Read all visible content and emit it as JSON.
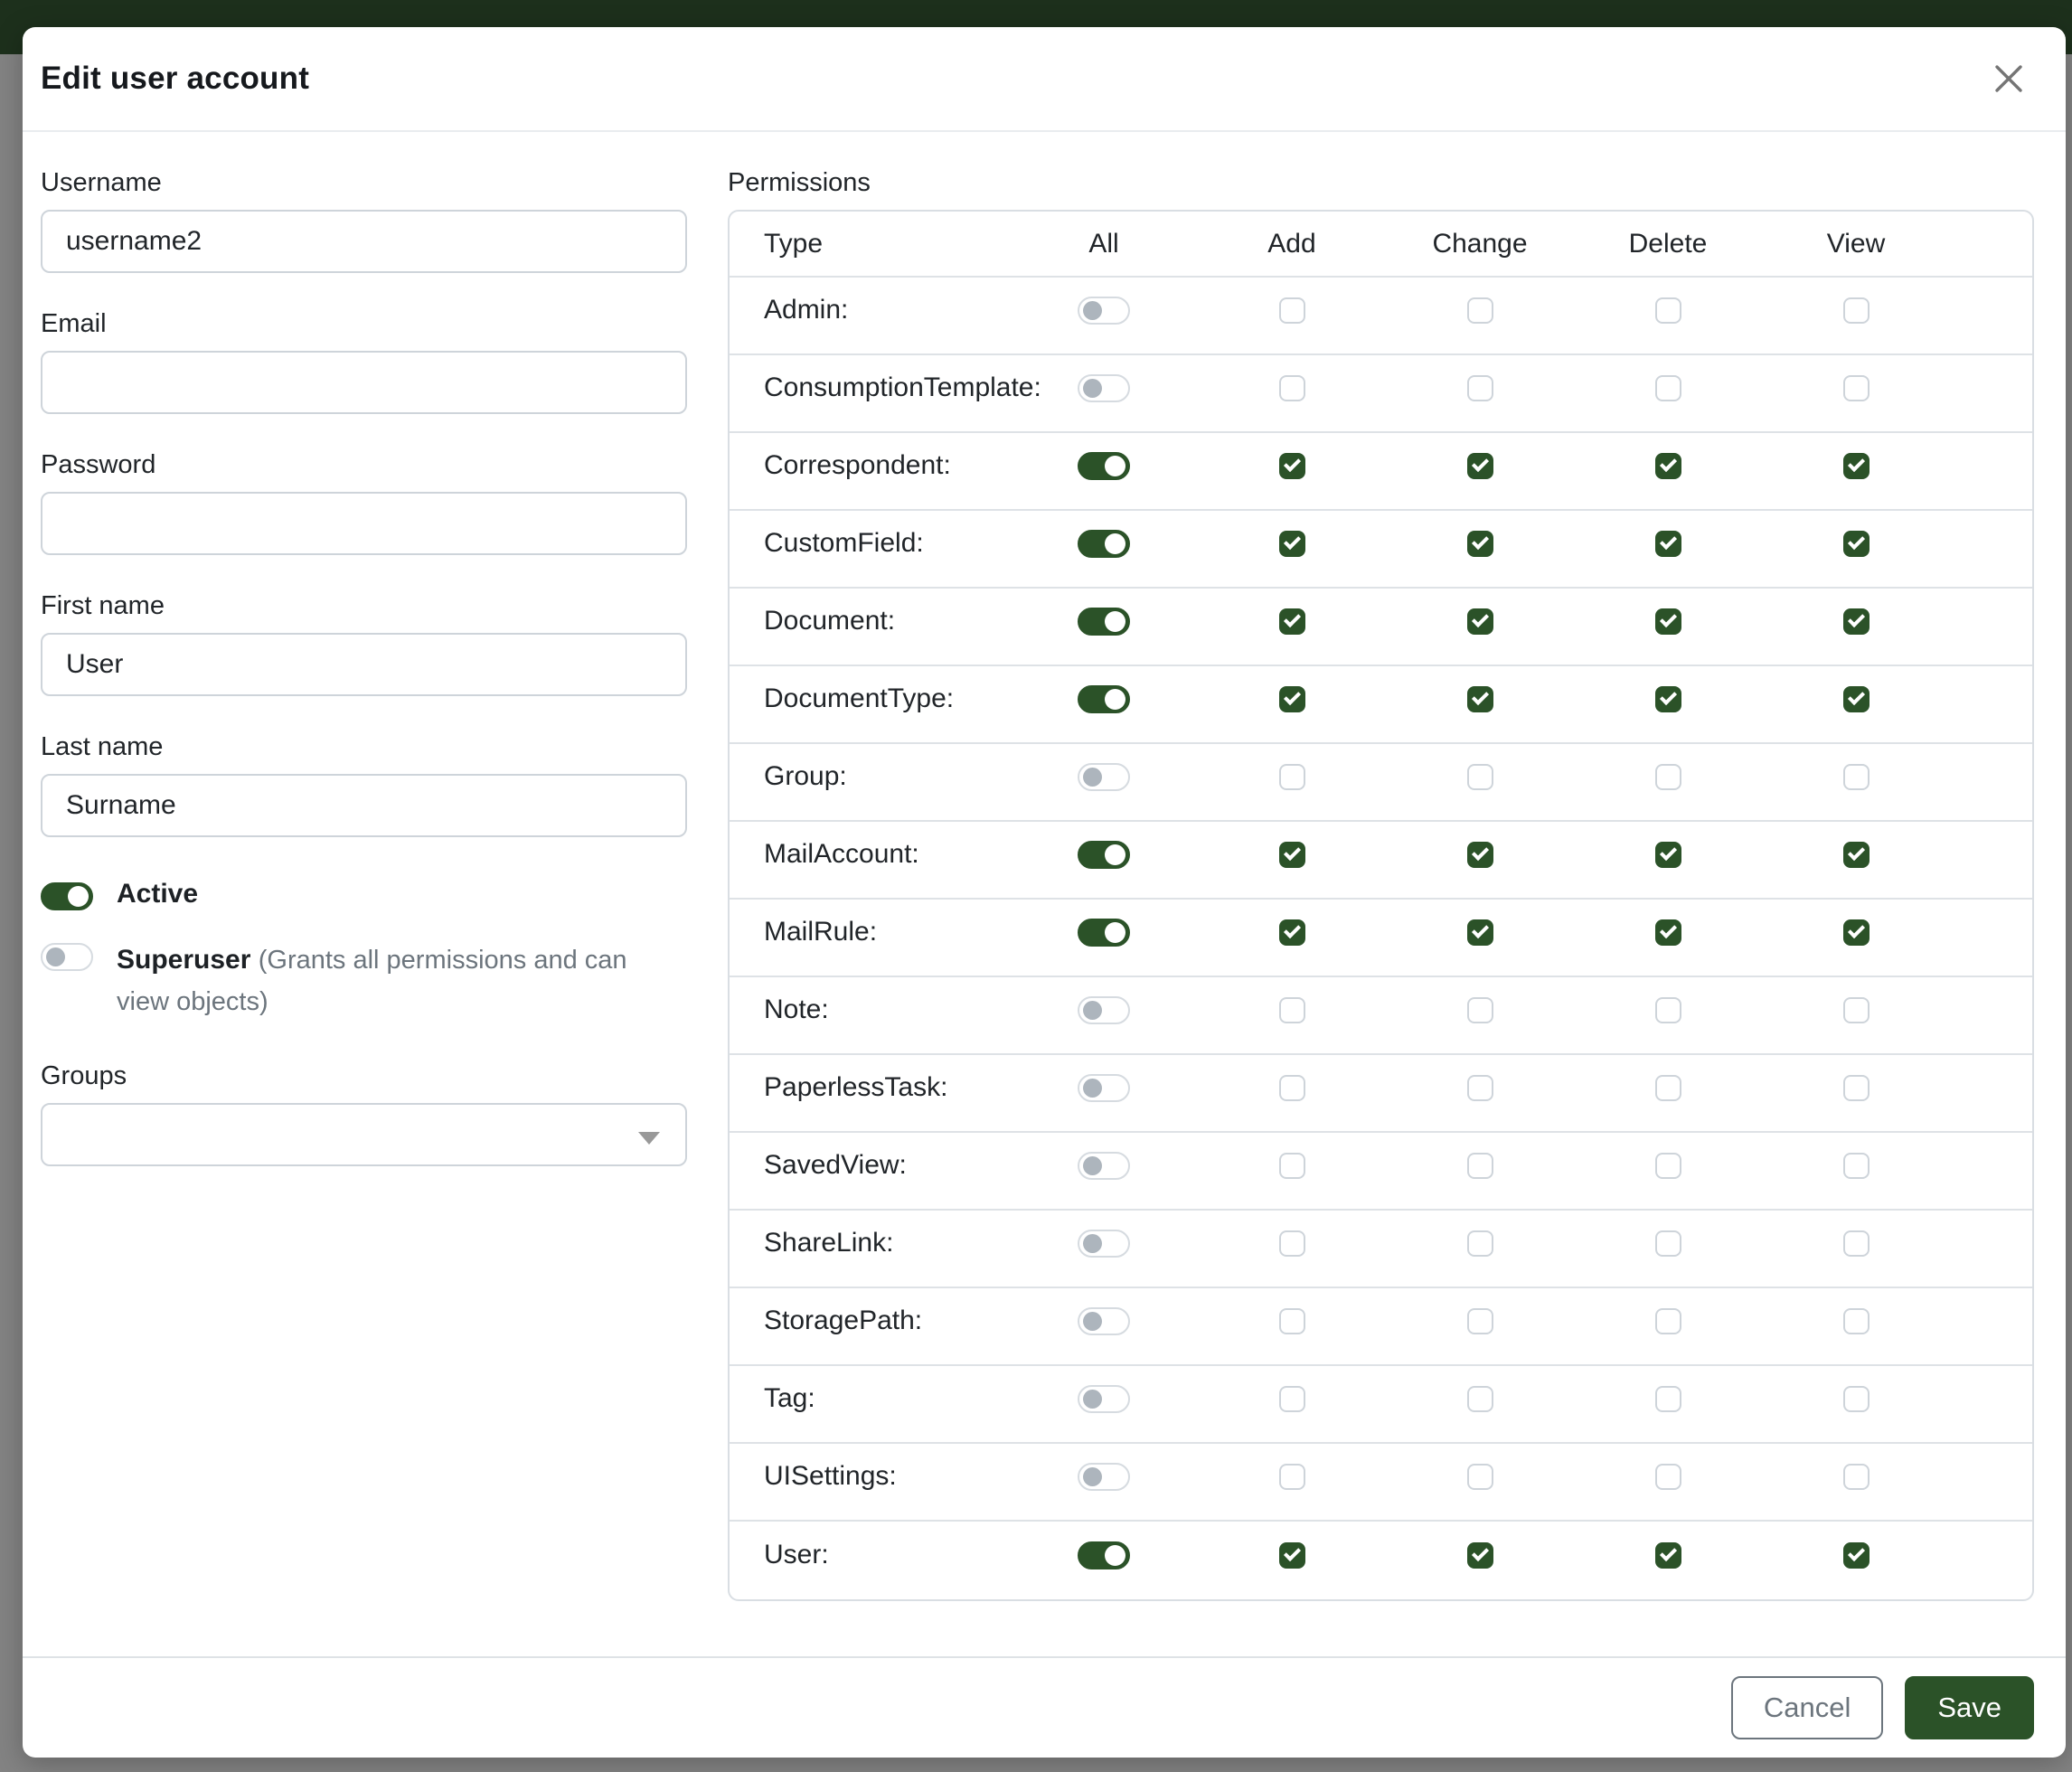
{
  "modal": {
    "title": "Edit user account"
  },
  "form": {
    "username": {
      "label": "Username",
      "value": "username2"
    },
    "email": {
      "label": "Email",
      "value": ""
    },
    "password": {
      "label": "Password",
      "value": ""
    },
    "first_name": {
      "label": "First name",
      "value": "User"
    },
    "last_name": {
      "label": "Last name",
      "value": "Surname"
    },
    "active": {
      "label": "Active",
      "checked": true
    },
    "superuser": {
      "label": "Superuser",
      "hint": "(Grants all permissions and can view objects)",
      "checked": false
    },
    "groups": {
      "label": "Groups",
      "value": ""
    }
  },
  "permissions": {
    "label": "Permissions",
    "columns": [
      "Type",
      "All",
      "Add",
      "Change",
      "Delete",
      "View"
    ],
    "rows": [
      {
        "key": "admin",
        "label": "Admin:",
        "all": false,
        "add": false,
        "change": false,
        "delete": false,
        "view": false
      },
      {
        "key": "consumptiontemplate",
        "label": "ConsumptionTemplate:",
        "all": false,
        "add": false,
        "change": false,
        "delete": false,
        "view": false
      },
      {
        "key": "correspondent",
        "label": "Correspondent:",
        "all": true,
        "add": true,
        "change": true,
        "delete": true,
        "view": true
      },
      {
        "key": "customfield",
        "label": "CustomField:",
        "all": true,
        "add": true,
        "change": true,
        "delete": true,
        "view": true
      },
      {
        "key": "document",
        "label": "Document:",
        "all": true,
        "add": true,
        "change": true,
        "delete": true,
        "view": true
      },
      {
        "key": "documenttype",
        "label": "DocumentType:",
        "all": true,
        "add": true,
        "change": true,
        "delete": true,
        "view": true
      },
      {
        "key": "group",
        "label": "Group:",
        "all": false,
        "add": false,
        "change": false,
        "delete": false,
        "view": false
      },
      {
        "key": "mailaccount",
        "label": "MailAccount:",
        "all": true,
        "add": true,
        "change": true,
        "delete": true,
        "view": true
      },
      {
        "key": "mailrule",
        "label": "MailRule:",
        "all": true,
        "add": true,
        "change": true,
        "delete": true,
        "view": true
      },
      {
        "key": "note",
        "label": "Note:",
        "all": false,
        "add": false,
        "change": false,
        "delete": false,
        "view": false
      },
      {
        "key": "paperlesstask",
        "label": "PaperlessTask:",
        "all": false,
        "add": false,
        "change": false,
        "delete": false,
        "view": false
      },
      {
        "key": "savedview",
        "label": "SavedView:",
        "all": false,
        "add": false,
        "change": false,
        "delete": false,
        "view": false
      },
      {
        "key": "sharelink",
        "label": "ShareLink:",
        "all": false,
        "add": false,
        "change": false,
        "delete": false,
        "view": false
      },
      {
        "key": "storagepath",
        "label": "StoragePath:",
        "all": false,
        "add": false,
        "change": false,
        "delete": false,
        "view": false
      },
      {
        "key": "tag",
        "label": "Tag:",
        "all": false,
        "add": false,
        "change": false,
        "delete": false,
        "view": false
      },
      {
        "key": "uisettings",
        "label": "UISettings:",
        "all": false,
        "add": false,
        "change": false,
        "delete": false,
        "view": false
      },
      {
        "key": "user",
        "label": "User:",
        "all": true,
        "add": true,
        "change": true,
        "delete": true,
        "view": true
      }
    ]
  },
  "footer": {
    "cancel_label": "Cancel",
    "save_label": "Save"
  },
  "colors": {
    "primary_green": "#2b5228",
    "navbar_green_dimmed": "#1d301c",
    "backdrop_gray": "#838383",
    "input_border": "#ced4da",
    "divider": "#dee2e6",
    "text": "#212529",
    "muted_text": "#6c757d"
  }
}
